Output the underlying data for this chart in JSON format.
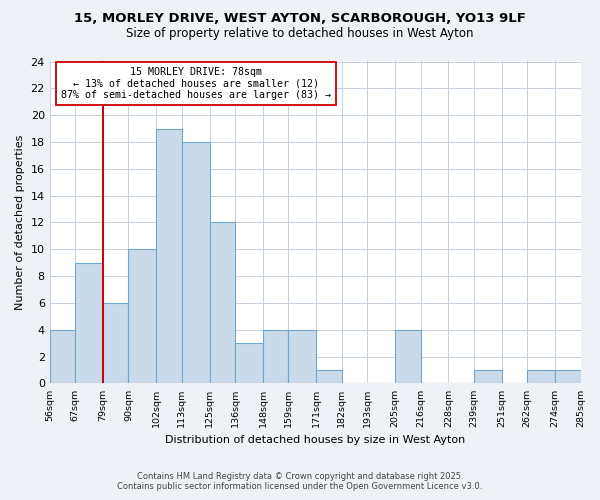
{
  "title": "15, MORLEY DRIVE, WEST AYTON, SCARBOROUGH, YO13 9LF",
  "subtitle": "Size of property relative to detached houses in West Ayton",
  "xlabel": "Distribution of detached houses by size in West Ayton",
  "ylabel": "Number of detached properties",
  "bar_color": "#c9daea",
  "bar_edge_color": "#6fa8cc",
  "vline_color": "#cc0000",
  "vline_x": 79,
  "annotation_line1": "15 MORLEY DRIVE: 78sqm",
  "annotation_line2": "← 13% of detached houses are smaller (12)",
  "annotation_line3": "87% of semi-detached houses are larger (83) →",
  "bins": [
    56,
    67,
    79,
    90,
    102,
    113,
    125,
    136,
    148,
    159,
    171,
    182,
    193,
    205,
    216,
    228,
    239,
    251,
    262,
    274,
    285
  ],
  "counts": [
    4,
    9,
    6,
    10,
    19,
    18,
    12,
    3,
    4,
    4,
    1,
    0,
    0,
    4,
    0,
    0,
    1,
    0,
    1,
    1
  ],
  "xlim": [
    56,
    285
  ],
  "ylim": [
    0,
    24
  ],
  "yticks": [
    0,
    2,
    4,
    6,
    8,
    10,
    12,
    14,
    16,
    18,
    20,
    22,
    24
  ],
  "tick_labels": [
    "56sqm",
    "67sqm",
    "79sqm",
    "90sqm",
    "102sqm",
    "113sqm",
    "125sqm",
    "136sqm",
    "148sqm",
    "159sqm",
    "171sqm",
    "182sqm",
    "193sqm",
    "205sqm",
    "216sqm",
    "228sqm",
    "239sqm",
    "251sqm",
    "262sqm",
    "274sqm",
    "285sqm"
  ],
  "footer_line1": "Contains HM Land Registry data © Crown copyright and database right 2025.",
  "footer_line2": "Contains public sector information licensed under the Open Government Licence v3.0.",
  "background_color": "#eef2f7",
  "plot_bg_color": "#ffffff",
  "grid_color": "#c5d0dc"
}
